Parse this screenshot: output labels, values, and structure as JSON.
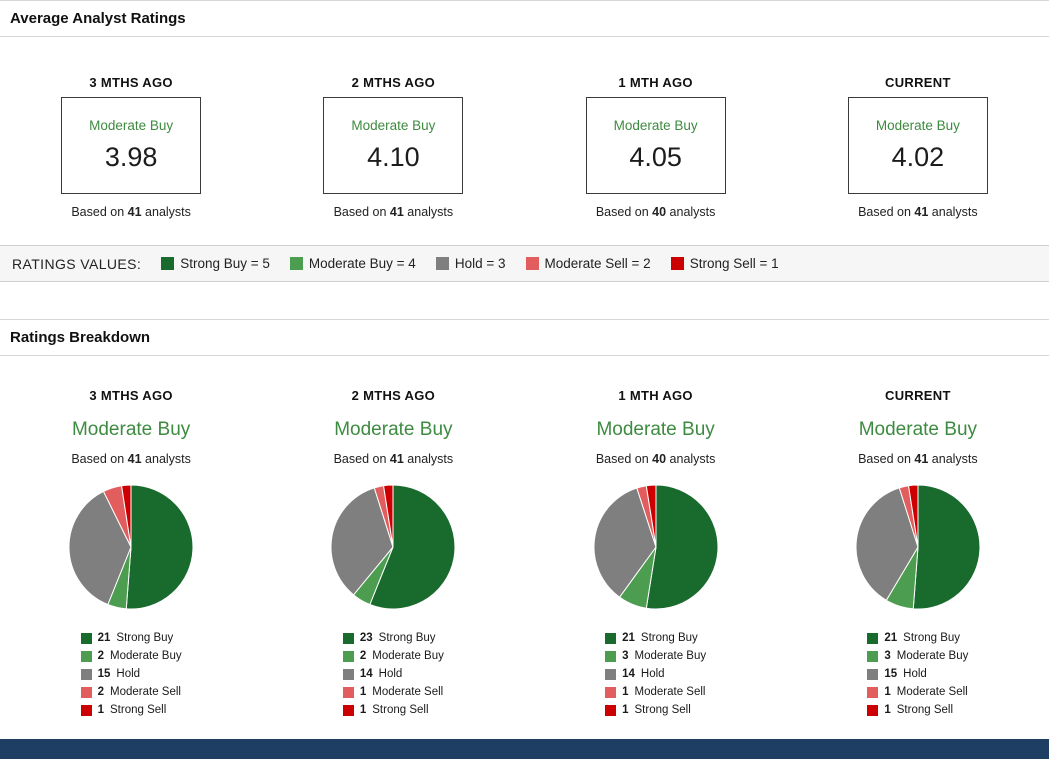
{
  "labels": {
    "section1_title": "Average Analyst Ratings",
    "section2_title": "Ratings Breakdown",
    "ratings_values_label": "RATINGS VALUES:",
    "based_on": "Based on",
    "analysts": "analysts"
  },
  "colors": {
    "strong_buy": "#186a2d",
    "moderate_buy": "#4d9d50",
    "hold": "#7f7f7f",
    "moderate_sell": "#e25d5d",
    "strong_sell": "#cc0000",
    "rating_green": "#3d8b40",
    "footer_bar": "#1f3e63"
  },
  "ratings_scale": [
    {
      "label": "Strong Buy = 5",
      "color_key": "strong_buy"
    },
    {
      "label": "Moderate Buy = 4",
      "color_key": "moderate_buy"
    },
    {
      "label": "Hold = 3",
      "color_key": "hold"
    },
    {
      "label": "Moderate Sell = 2",
      "color_key": "moderate_sell"
    },
    {
      "label": "Strong Sell = 1",
      "color_key": "strong_sell"
    }
  ],
  "summary": {
    "columns": [
      {
        "period": "3 MTHS AGO",
        "rating": "Moderate Buy",
        "score": "3.98",
        "analysts": "41"
      },
      {
        "period": "2 MTHS AGO",
        "rating": "Moderate Buy",
        "score": "4.10",
        "analysts": "41"
      },
      {
        "period": "1 MTH AGO",
        "rating": "Moderate Buy",
        "score": "4.05",
        "analysts": "40"
      },
      {
        "period": "CURRENT",
        "rating": "Moderate Buy",
        "score": "4.02",
        "analysts": "41"
      }
    ]
  },
  "breakdown": {
    "columns": [
      {
        "period": "3 MTHS AGO",
        "rating": "Moderate Buy",
        "analysts": "41",
        "slices": [
          {
            "count": 21,
            "label": "Strong Buy",
            "color_key": "strong_buy"
          },
          {
            "count": 2,
            "label": "Moderate Buy",
            "color_key": "moderate_buy"
          },
          {
            "count": 15,
            "label": "Hold",
            "color_key": "hold"
          },
          {
            "count": 2,
            "label": "Moderate Sell",
            "color_key": "moderate_sell"
          },
          {
            "count": 1,
            "label": "Strong Sell",
            "color_key": "strong_sell"
          }
        ]
      },
      {
        "period": "2 MTHS AGO",
        "rating": "Moderate Buy",
        "analysts": "41",
        "slices": [
          {
            "count": 23,
            "label": "Strong Buy",
            "color_key": "strong_buy"
          },
          {
            "count": 2,
            "label": "Moderate Buy",
            "color_key": "moderate_buy"
          },
          {
            "count": 14,
            "label": "Hold",
            "color_key": "hold"
          },
          {
            "count": 1,
            "label": "Moderate Sell",
            "color_key": "moderate_sell"
          },
          {
            "count": 1,
            "label": "Strong Sell",
            "color_key": "strong_sell"
          }
        ]
      },
      {
        "period": "1 MTH AGO",
        "rating": "Moderate Buy",
        "analysts": "40",
        "slices": [
          {
            "count": 21,
            "label": "Strong Buy",
            "color_key": "strong_buy"
          },
          {
            "count": 3,
            "label": "Moderate Buy",
            "color_key": "moderate_buy"
          },
          {
            "count": 14,
            "label": "Hold",
            "color_key": "hold"
          },
          {
            "count": 1,
            "label": "Moderate Sell",
            "color_key": "moderate_sell"
          },
          {
            "count": 1,
            "label": "Strong Sell",
            "color_key": "strong_sell"
          }
        ]
      },
      {
        "period": "CURRENT",
        "rating": "Moderate Buy",
        "analysts": "41",
        "slices": [
          {
            "count": 21,
            "label": "Strong Buy",
            "color_key": "strong_buy"
          },
          {
            "count": 3,
            "label": "Moderate Buy",
            "color_key": "moderate_buy"
          },
          {
            "count": 15,
            "label": "Hold",
            "color_key": "hold"
          },
          {
            "count": 1,
            "label": "Moderate Sell",
            "color_key": "moderate_sell"
          },
          {
            "count": 1,
            "label": "Strong Sell",
            "color_key": "strong_sell"
          }
        ]
      }
    ]
  },
  "chart_data": [
    {
      "type": "pie",
      "title": "3 MTHS AGO",
      "consensus": "Moderate Buy",
      "average_score": 3.98,
      "total_analysts": 41,
      "labels": [
        "Strong Buy",
        "Moderate Buy",
        "Hold",
        "Moderate Sell",
        "Strong Sell"
      ],
      "values": [
        21,
        2,
        15,
        2,
        1
      ],
      "legend_position": "bottom-left"
    },
    {
      "type": "pie",
      "title": "2 MTHS AGO",
      "consensus": "Moderate Buy",
      "average_score": 4.1,
      "total_analysts": 41,
      "labels": [
        "Strong Buy",
        "Moderate Buy",
        "Hold",
        "Moderate Sell",
        "Strong Sell"
      ],
      "values": [
        23,
        2,
        14,
        1,
        1
      ],
      "legend_position": "bottom-left"
    },
    {
      "type": "pie",
      "title": "1 MTH AGO",
      "consensus": "Moderate Buy",
      "average_score": 4.05,
      "total_analysts": 40,
      "labels": [
        "Strong Buy",
        "Moderate Buy",
        "Hold",
        "Moderate Sell",
        "Strong Sell"
      ],
      "values": [
        21,
        3,
        14,
        1,
        1
      ],
      "legend_position": "bottom-left"
    },
    {
      "type": "pie",
      "title": "CURRENT",
      "consensus": "Moderate Buy",
      "average_score": 4.02,
      "total_analysts": 41,
      "labels": [
        "Strong Buy",
        "Moderate Buy",
        "Hold",
        "Moderate Sell",
        "Strong Sell"
      ],
      "values": [
        21,
        3,
        15,
        1,
        1
      ],
      "legend_position": "bottom-left"
    }
  ]
}
